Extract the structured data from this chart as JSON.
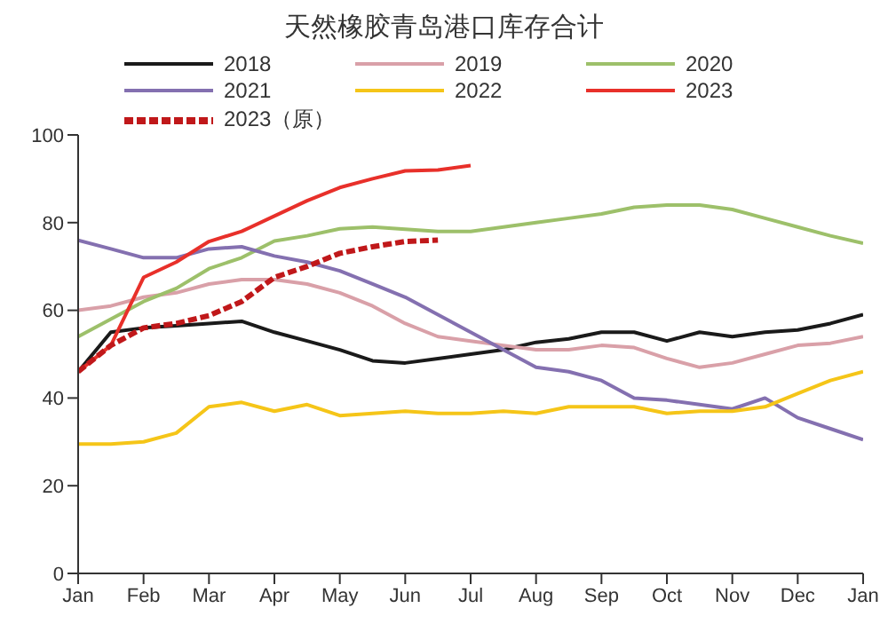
{
  "chart_data": {
    "type": "line",
    "title": "天然橡胶青岛港口库存合计",
    "legend": "top",
    "marker": "none",
    "categories": [
      "Jan",
      null,
      "Feb",
      null,
      "Mar",
      null,
      "Apr",
      null,
      "May",
      null,
      "Jun",
      null,
      "Jul",
      null,
      "Aug",
      null,
      "Sep",
      null,
      "Oct",
      null,
      "Nov",
      null,
      "Dec",
      null,
      "Jan"
    ],
    "ylim": [
      0,
      100
    ],
    "yticks": [
      0,
      20,
      40,
      60,
      80,
      100
    ],
    "series": [
      {
        "name": "2018",
        "color": "#1a1a1a",
        "values": [
          46,
          55,
          56,
          56.5,
          57,
          57.5,
          55,
          53,
          51,
          48.5,
          48,
          49,
          50,
          51,
          52.7,
          53.5,
          55,
          55,
          53,
          55,
          54,
          55,
          55.5,
          57,
          59
        ]
      },
      {
        "name": "2019",
        "color": "#d9a0a8",
        "values": [
          60,
          61,
          63,
          64,
          66,
          67,
          67,
          66,
          64,
          61,
          57,
          54,
          53,
          52,
          51,
          51,
          52,
          51.5,
          49,
          47,
          48,
          50,
          52,
          52.5,
          54
        ]
      },
      {
        "name": "2020",
        "color": "#9dc06a",
        "values": [
          54,
          58,
          62,
          65,
          69.5,
          72,
          75.8,
          77,
          78.6,
          79,
          78.5,
          78,
          78,
          79,
          80,
          81,
          82,
          83.5,
          84,
          84,
          83,
          81,
          79,
          77,
          75.3
        ]
      },
      {
        "name": "2021",
        "color": "#8470b0",
        "values": [
          76,
          74,
          72,
          72,
          74,
          74.5,
          72.4,
          71,
          69,
          66,
          63,
          59,
          55,
          51,
          47,
          46,
          44,
          40,
          39.5,
          38.5,
          37.5,
          40,
          35.5,
          33,
          30.5
        ]
      },
      {
        "name": "2022",
        "color": "#f5c518",
        "values": [
          29.5,
          29.5,
          30,
          32,
          38,
          39,
          37,
          38.5,
          36,
          36.5,
          37,
          36.5,
          36.5,
          37,
          36.5,
          38,
          38,
          38,
          36.5,
          37,
          37,
          38,
          41,
          44,
          46
        ]
      },
      {
        "name": "2023",
        "color": "#e8302a",
        "values": [
          46,
          52,
          67.5,
          71,
          75.7,
          78,
          81.5,
          85,
          88,
          90,
          91.8,
          92,
          93,
          null,
          null,
          null,
          null,
          null,
          null,
          null,
          null,
          null,
          null,
          null,
          null
        ]
      },
      {
        "name": "2023（原）",
        "color": "#c0181a",
        "line_style": "dashed",
        "values": [
          46,
          52,
          56,
          57,
          58.8,
          62,
          67.5,
          70,
          73,
          74.5,
          75.7,
          76,
          null,
          null,
          null,
          null,
          null,
          null,
          null,
          null,
          null,
          null,
          null,
          null,
          null
        ]
      }
    ]
  }
}
